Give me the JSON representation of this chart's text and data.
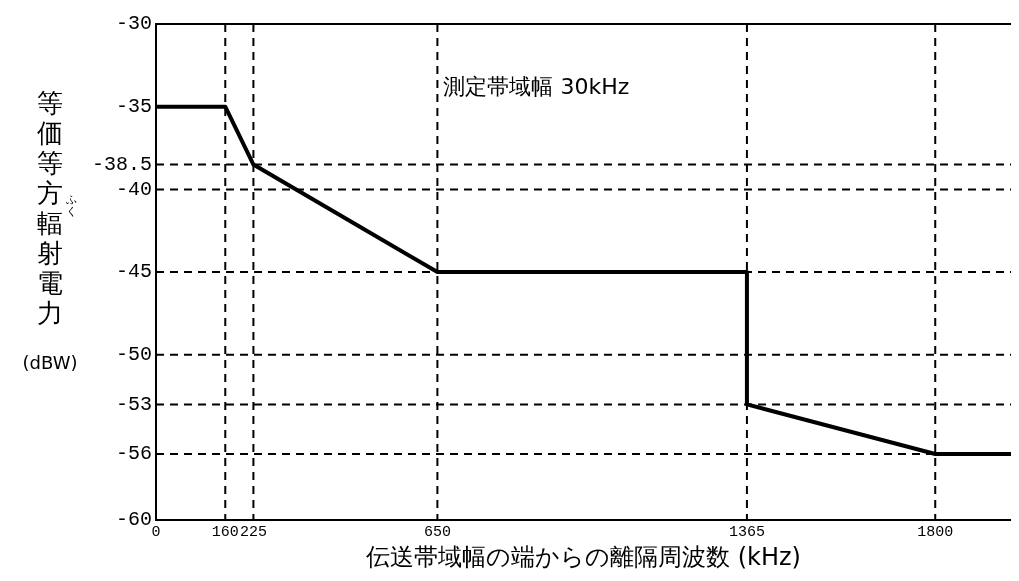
{
  "chart_data": {
    "type": "line",
    "xlabel": "伝送帯域幅の端からの離隔周波数 (kHz)",
    "ylabel": "等価等方輻射電力 (dBW)",
    "annotations": [
      "測定帯域幅 30kHz",
      "ふく"
    ],
    "x": [
      0,
      160,
      225,
      650,
      1365,
      1365,
      1800,
      1975
    ],
    "series": [
      {
        "color": "#000000",
        "values": [
          -35,
          -35,
          -38.5,
          -45,
          -45,
          -53,
          -56,
          -56
        ]
      }
    ],
    "xlim": [
      0,
      1975
    ],
    "xticks": [
      0,
      160,
      225,
      650,
      1365,
      1800
    ],
    "ylim": [
      -60,
      -30
    ],
    "yticks": [
      -60,
      -56,
      -53,
      -50,
      -45,
      -40,
      -38.5,
      -35,
      -30
    ],
    "ref_lines": [
      {
        "axis": "x",
        "value": 160,
        "line_style": "dashed",
        "color": "#000000"
      },
      {
        "axis": "x",
        "value": 225,
        "line_style": "dashed",
        "color": "#000000"
      },
      {
        "axis": "x",
        "value": 650,
        "line_style": "dashed",
        "color": "#000000"
      },
      {
        "axis": "x",
        "value": 1365,
        "line_style": "dashed",
        "color": "#000000"
      },
      {
        "axis": "x",
        "value": 1800,
        "line_style": "dashed",
        "color": "#000000"
      },
      {
        "axis": "y",
        "value": -38.5,
        "line_style": "dashed",
        "color": "#000000"
      },
      {
        "axis": "y",
        "value": -40,
        "line_style": "dashed",
        "color": "#000000"
      },
      {
        "axis": "y",
        "value": -45,
        "line_style": "dashed",
        "color": "#000000"
      },
      {
        "axis": "y",
        "value": -50,
        "line_style": "dashed",
        "color": "#000000"
      },
      {
        "axis": "y",
        "value": -53,
        "line_style": "dashed",
        "color": "#000000"
      },
      {
        "axis": "y",
        "value": -56,
        "line_style": "dashed",
        "color": "#000000"
      }
    ],
    "grid": false,
    "legend": false,
    "marker": "none",
    "line_style": "solid"
  }
}
